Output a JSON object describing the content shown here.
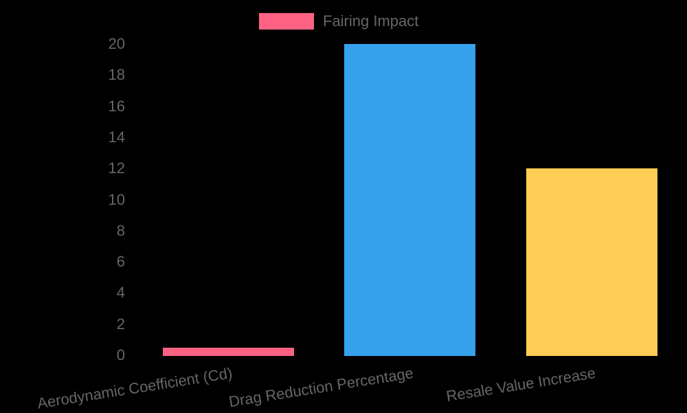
{
  "chart_data": {
    "type": "bar",
    "title": "",
    "xlabel": "",
    "ylabel": "",
    "categories": [
      "Aerodynamic Coefficient (Cd)",
      "Drag Reduction Percentage",
      "Resale Value Increase"
    ],
    "series": [
      {
        "name": "Fairing Impact",
        "values": [
          0.5,
          20,
          12
        ],
        "colors": [
          "#ff6384",
          "#36a2eb",
          "#ffcd56"
        ]
      }
    ],
    "ylim": [
      0,
      20
    ],
    "yticks": [
      "0",
      "2",
      "4",
      "6",
      "8",
      "10",
      "12",
      "14",
      "16",
      "18",
      "20"
    ],
    "grid": false,
    "legend_position": "top"
  },
  "legend": {
    "label": "Fairing Impact",
    "color": "#ff6384"
  }
}
